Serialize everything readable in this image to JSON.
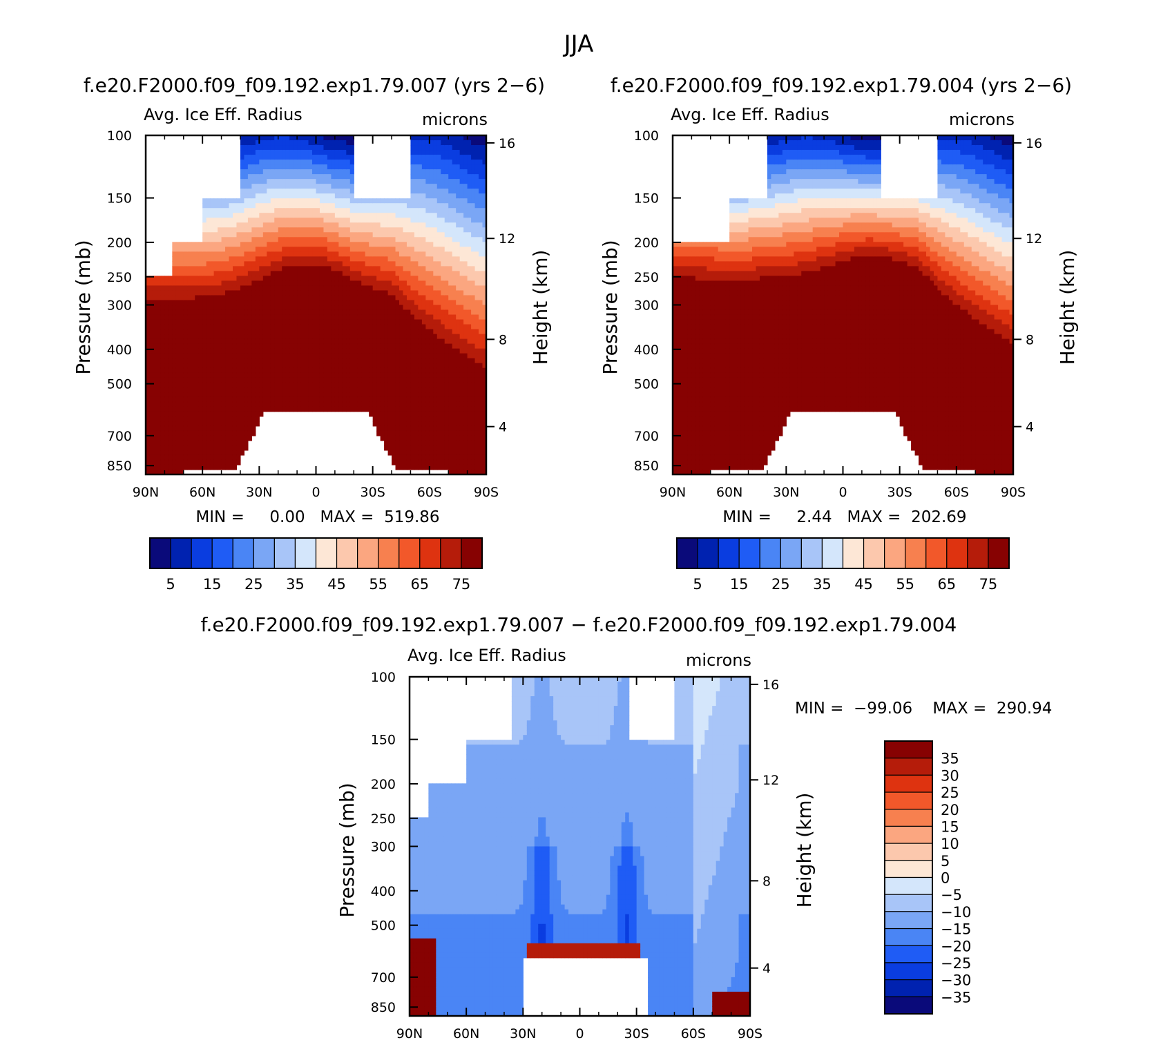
{
  "title": "JJA",
  "colors": {
    "main": [
      "#0a0a7a",
      "#0022b0",
      "#0a3de0",
      "#1f5cf5",
      "#4a85f5",
      "#7aa6f5",
      "#a8c5f8",
      "#d4e6fb",
      "#fde7d6",
      "#fcc8ad",
      "#fba680",
      "#f7804f",
      "#f2582a",
      "#de3310",
      "#b51c0a",
      "#870202"
    ],
    "diff": [
      "#0a0a7a",
      "#0022b0",
      "#0a3de0",
      "#1f5cf5",
      "#4a85f5",
      "#7aa6f5",
      "#a8c5f8",
      "#d4e6fb",
      "#fde7d6",
      "#fcc8ad",
      "#fba680",
      "#f7804f",
      "#f2582a",
      "#de3310",
      "#b51c0a",
      "#870202"
    ]
  },
  "chart_data": [
    {
      "type": "heatmap",
      "panel_title": "f.e20.F2000.f09_f09.192.exp1.79.007 (yrs 2−6)",
      "variable": "Avg. Ice Eff. Radius",
      "units": "microns",
      "xlabel": "",
      "ylabel": "Pressure (mb)",
      "ylabel_right": "Height (km)",
      "x_ticks": [
        "90N",
        "60N",
        "30N",
        "0",
        "30S",
        "60S",
        "90S"
      ],
      "y_ticks": [
        "100",
        "150",
        "200",
        "250",
        "300",
        "400",
        "500",
        "700",
        "850"
      ],
      "y_ticks_right": [
        "16",
        "12",
        "8",
        "4"
      ],
      "min_text": "MIN =     0.00   MAX =  519.86",
      "colorbar_labels": [
        "5",
        "15",
        "25",
        "35",
        "45",
        "55",
        "65",
        "75"
      ],
      "levels": [
        0,
        5,
        10,
        15,
        20,
        25,
        30,
        35,
        40,
        45,
        50,
        55,
        60,
        65,
        70,
        75
      ]
    },
    {
      "type": "heatmap",
      "panel_title": "f.e20.F2000.f09_f09.192.exp1.79.004 (yrs 2−6)",
      "variable": "Avg. Ice Eff. Radius",
      "units": "microns",
      "xlabel": "",
      "ylabel": "Pressure (mb)",
      "ylabel_right": "Height (km)",
      "x_ticks": [
        "90N",
        "60N",
        "30N",
        "0",
        "30S",
        "60S",
        "90S"
      ],
      "y_ticks": [
        "100",
        "150",
        "200",
        "250",
        "300",
        "400",
        "500",
        "700",
        "850"
      ],
      "y_ticks_right": [
        "16",
        "12",
        "8",
        "4"
      ],
      "min_text": "MIN =     2.44   MAX =  202.69",
      "colorbar_labels": [
        "5",
        "15",
        "25",
        "35",
        "45",
        "55",
        "65",
        "75"
      ],
      "levels": [
        0,
        5,
        10,
        15,
        20,
        25,
        30,
        35,
        40,
        45,
        50,
        55,
        60,
        65,
        70,
        75
      ]
    },
    {
      "type": "heatmap",
      "panel_title": "f.e20.F2000.f09_f09.192.exp1.79.007 − f.e20.F2000.f09_f09.192.exp1.79.004",
      "variable": "Avg. Ice Eff. Radius",
      "units": "microns",
      "xlabel": "",
      "ylabel": "Pressure (mb)",
      "ylabel_right": "Height (km)",
      "x_ticks": [
        "90N",
        "60N",
        "30N",
        "0",
        "30S",
        "60S",
        "90S"
      ],
      "y_ticks": [
        "100",
        "150",
        "200",
        "250",
        "300",
        "400",
        "500",
        "700",
        "850"
      ],
      "y_ticks_right": [
        "16",
        "12",
        "8",
        "4"
      ],
      "min_text": "MIN =  −99.06    MAX =  290.94",
      "colorbar_labels": [
        "35",
        "30",
        "25",
        "20",
        "15",
        "10",
        "5",
        "0",
        "−5",
        "−10",
        "−15",
        "−20",
        "−25",
        "−30",
        "−35"
      ],
      "levels": [
        -40,
        -35,
        -30,
        -25,
        -20,
        -15,
        -10,
        -5,
        0,
        5,
        10,
        15,
        20,
        25,
        30,
        35,
        40
      ]
    }
  ]
}
